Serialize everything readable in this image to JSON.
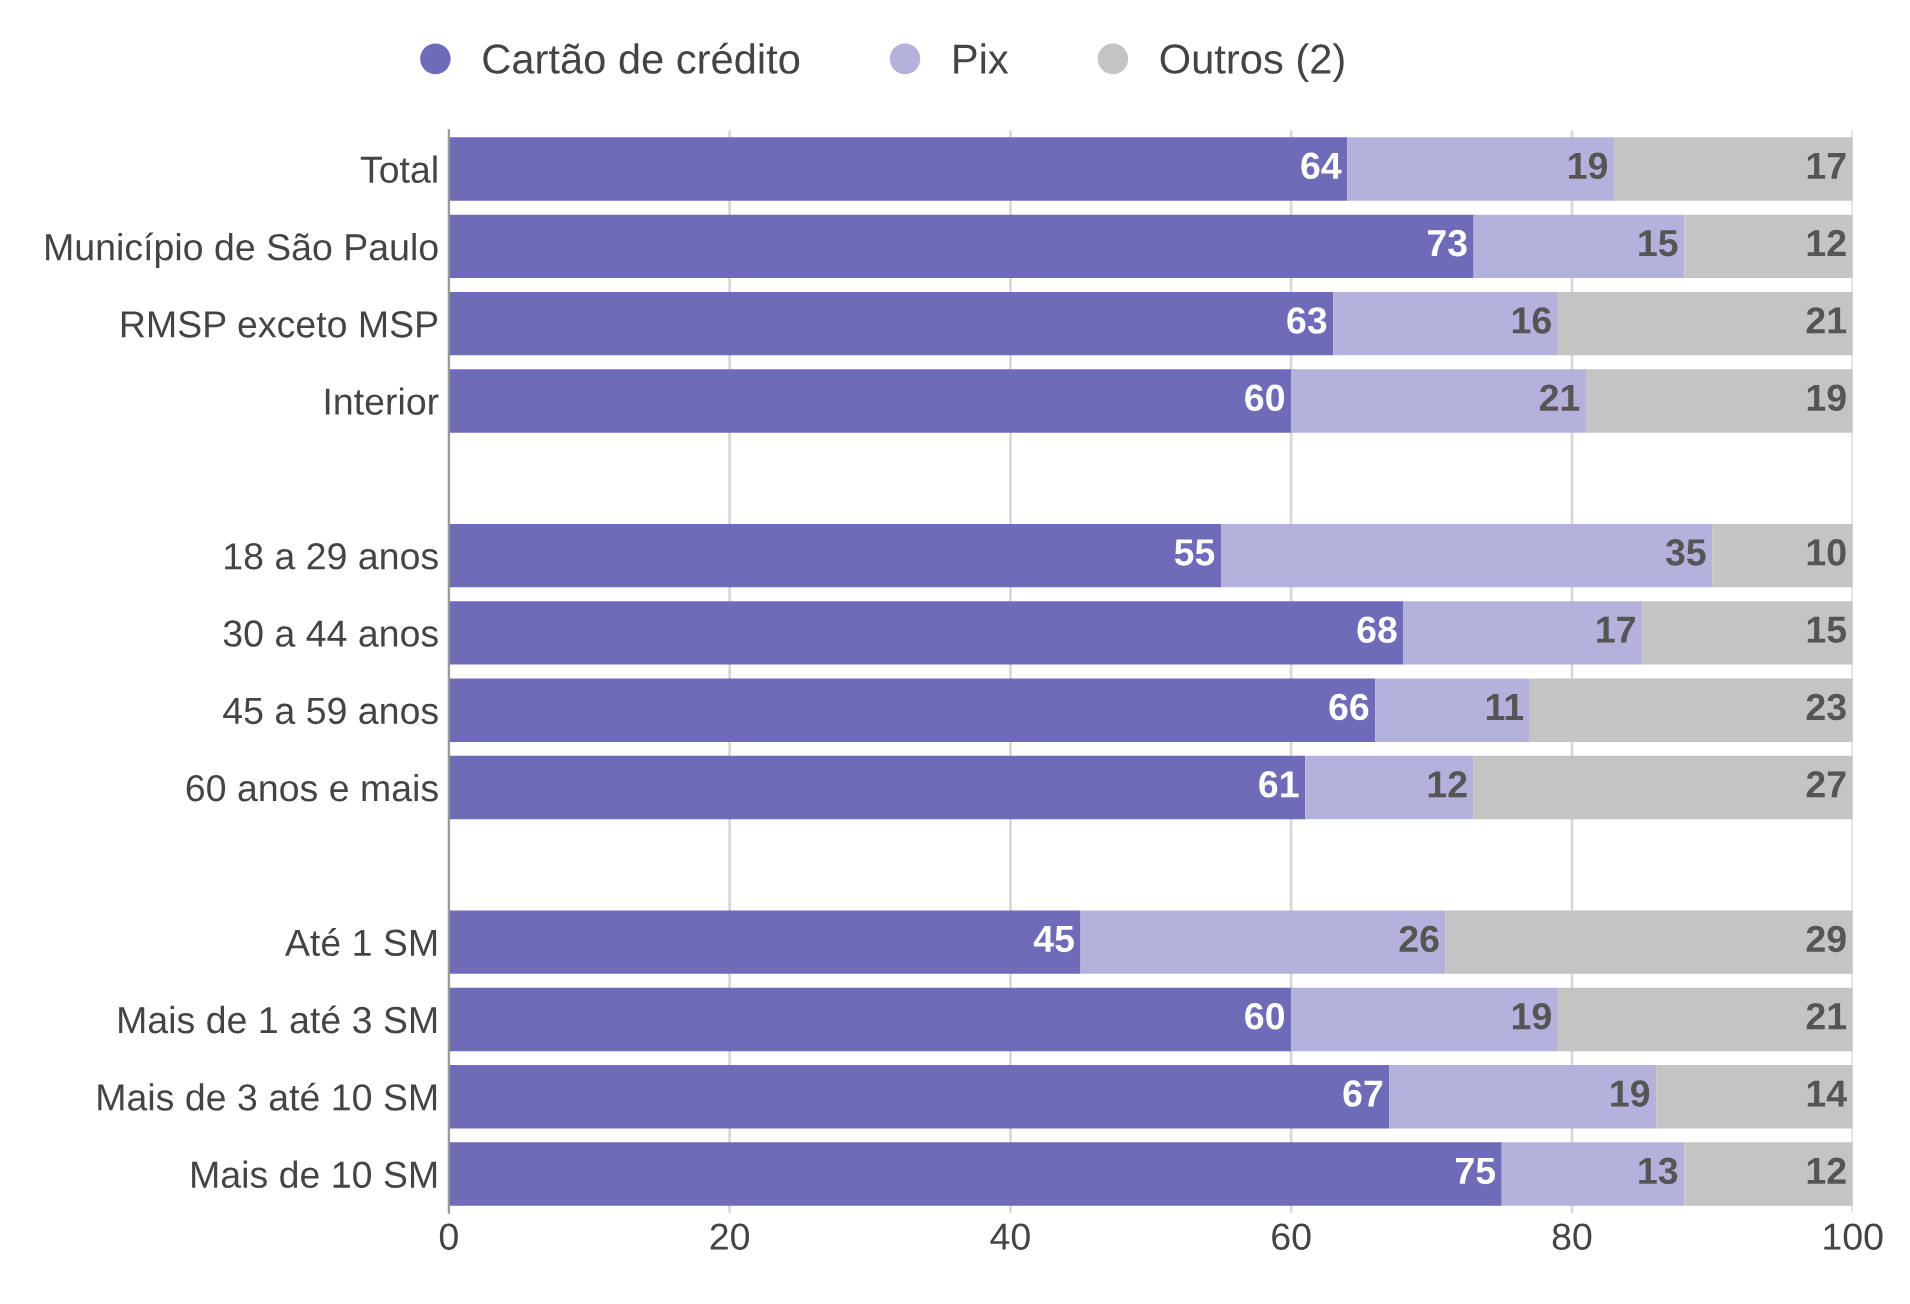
{
  "chart_data": {
    "type": "bar",
    "orientation": "horizontal",
    "stacked": true,
    "categories": [
      "Total",
      "Município de São Paulo",
      "RMSP exceto MSP",
      "Interior",
      null,
      "18 a 29 anos",
      "30 a 44 anos",
      "45 a 59 anos",
      "60 anos e mais",
      null,
      "Até 1 SM",
      "Mais de 1 até 3 SM",
      "Mais de 3 até 10 SM",
      "Mais de 10 SM"
    ],
    "series": [
      {
        "name": "Cartão de crédito",
        "color": "#6e6bb8",
        "values": [
          64,
          73,
          63,
          60,
          null,
          55,
          68,
          66,
          61,
          null,
          45,
          60,
          67,
          75
        ]
      },
      {
        "name": "Pix",
        "color": "#b4b2dc",
        "values": [
          19,
          15,
          16,
          21,
          null,
          35,
          17,
          11,
          12,
          null,
          26,
          19,
          19,
          13
        ]
      },
      {
        "name": "Outros (2)",
        "color": "#c4c4c4",
        "values": [
          17,
          12,
          21,
          19,
          null,
          10,
          15,
          23,
          27,
          null,
          29,
          21,
          14,
          12
        ]
      }
    ],
    "xlim": [
      0,
      100
    ],
    "xticks": [
      0,
      20,
      40,
      60,
      80,
      100
    ],
    "grid": "x",
    "legend": "top",
    "data_labels": true
  }
}
